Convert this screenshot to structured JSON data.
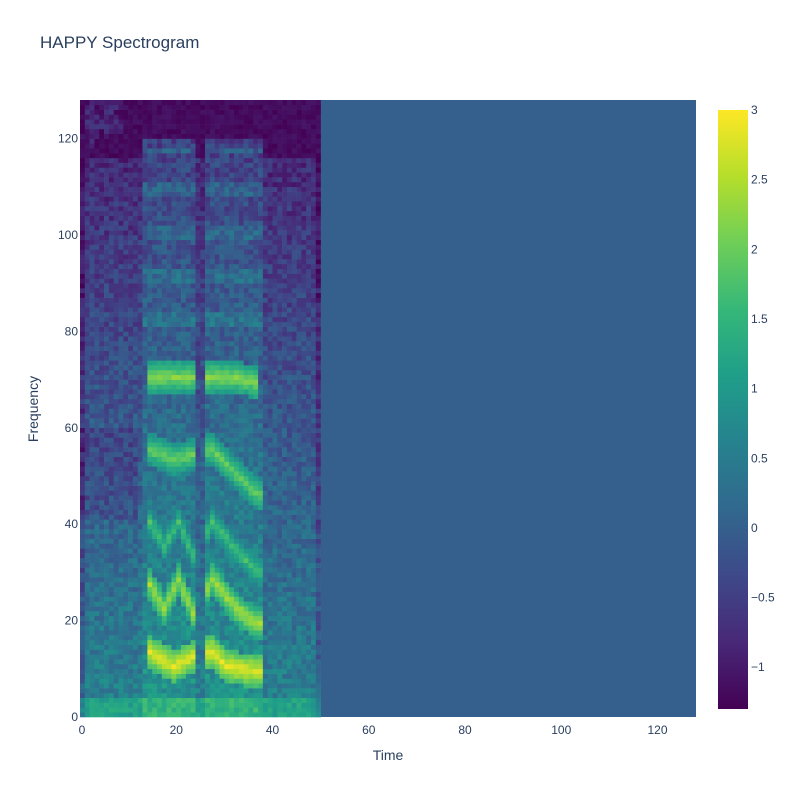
{
  "chart_data": {
    "type": "heatmap",
    "title": "HAPPY Spectrogram",
    "xlabel": "Time",
    "ylabel": "Frequency",
    "x_range": [
      0,
      127
    ],
    "y_range": [
      0,
      127
    ],
    "x_ticks": [
      0,
      20,
      40,
      60,
      80,
      100,
      120
    ],
    "y_ticks": [
      0,
      20,
      40,
      60,
      80,
      100,
      120
    ],
    "colorscale": "Viridis",
    "zmin": -1.3,
    "zmax": 3,
    "colorbar_ticks": [
      {
        "value": 3,
        "label": "3"
      },
      {
        "value": 2.5,
        "label": "2.5"
      },
      {
        "value": 2,
        "label": "2"
      },
      {
        "value": 1.5,
        "label": "1.5"
      },
      {
        "value": 1,
        "label": "1"
      },
      {
        "value": 0.5,
        "label": "0.5"
      },
      {
        "value": 0,
        "label": "0"
      },
      {
        "value": -0.5,
        "label": "−0.5"
      },
      {
        "value": -1,
        "label": "−1"
      }
    ],
    "speech_end_time": 49.5,
    "padding_value": 0,
    "silence_value": -1.3,
    "harmonic_bands": [
      {
        "segments": [
          [
            14,
            13
          ],
          [
            19,
            10
          ],
          [
            23,
            12
          ],
          [
            27,
            13
          ],
          [
            30,
            10
          ],
          [
            36,
            9
          ],
          [
            43,
            9
          ]
        ],
        "value": 2.8
      },
      {
        "segments": [
          [
            14,
            27
          ],
          [
            17,
            22
          ],
          [
            20,
            28
          ],
          [
            23,
            21
          ],
          [
            27,
            28
          ],
          [
            32,
            22
          ],
          [
            36,
            19
          ],
          [
            43,
            19
          ]
        ],
        "value": 2.4
      },
      {
        "segments": [
          [
            14,
            40
          ],
          [
            17,
            35
          ],
          [
            20,
            40
          ],
          [
            23,
            33
          ],
          [
            27,
            40
          ],
          [
            32,
            34
          ],
          [
            36,
            30
          ],
          [
            40,
            28
          ]
        ],
        "value": 1.7
      },
      {
        "segments": [
          [
            14,
            55
          ],
          [
            19,
            53
          ],
          [
            23,
            54
          ],
          [
            27,
            55
          ],
          [
            32,
            50
          ],
          [
            36,
            46
          ],
          [
            40,
            44
          ]
        ],
        "value": 2.0
      },
      {
        "segments": [
          [
            14,
            70
          ],
          [
            19,
            70
          ],
          [
            23,
            70
          ],
          [
            27,
            70
          ],
          [
            32,
            70
          ],
          [
            36,
            69
          ]
        ],
        "value": 2.2
      }
    ],
    "voiced_segments": [
      [
        13,
        23
      ],
      [
        26,
        37
      ]
    ]
  }
}
